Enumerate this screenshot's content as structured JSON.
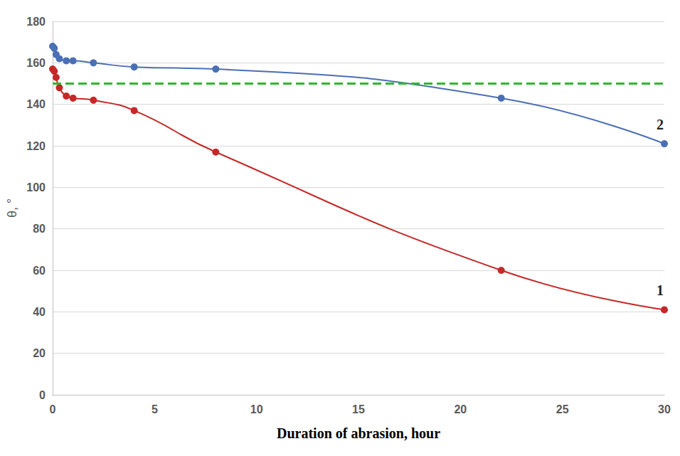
{
  "chart_data": {
    "type": "line",
    "x_label": "Duration of abrasion, hour",
    "y_label": "θ, °",
    "x": [
      0,
      0.08,
      0.17,
      0.33,
      0.67,
      1,
      2,
      4,
      8,
      22,
      30
    ],
    "series": [
      {
        "name": "1",
        "color": "#c62828",
        "marker": "circle",
        "line_style": "solid",
        "values": [
          157,
          156,
          153,
          148,
          144,
          143,
          142,
          137,
          117,
          60,
          41
        ]
      },
      {
        "name": "2",
        "color": "#4a6fb5",
        "marker": "circle",
        "line_style": "solid",
        "values": [
          168,
          167,
          164,
          162,
          161,
          161,
          160,
          158,
          157,
          143,
          121
        ]
      }
    ],
    "reference_lines": [
      {
        "value": 150,
        "color": "#2eb82e",
        "line_style": "dashed"
      }
    ],
    "xlim": [
      0,
      30
    ],
    "xticks": [
      0,
      5,
      10,
      15,
      20,
      25,
      30
    ],
    "ylim": [
      0,
      180
    ],
    "yticks": [
      0,
      20,
      40,
      60,
      80,
      100,
      120,
      140,
      160,
      180
    ],
    "grid": true
  }
}
